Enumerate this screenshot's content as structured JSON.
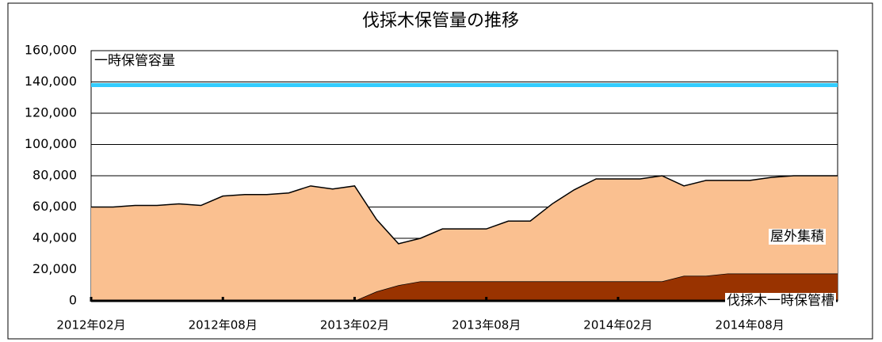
{
  "chart_data": {
    "type": "area",
    "title": "伐採木保管量の推移",
    "categories": [
      "2012年02月",
      null,
      null,
      null,
      null,
      null,
      "2012年08月",
      null,
      null,
      null,
      null,
      null,
      "2013年02月",
      null,
      null,
      null,
      null,
      null,
      "2013年08月",
      null,
      null,
      null,
      null,
      null,
      "2014年02月",
      null,
      null,
      null,
      null,
      null,
      "2014年08月",
      null,
      null,
      null,
      null
    ],
    "series": [
      {
        "name": "伐採木一時保管槽",
        "color": "#993300",
        "values": [
          0,
          0,
          0,
          0,
          0,
          0,
          0,
          0,
          0,
          0,
          0,
          0,
          0,
          6000,
          10000,
          12500,
          12500,
          12500,
          12500,
          12500,
          12500,
          12500,
          12500,
          12500,
          12500,
          12500,
          12500,
          16000,
          16000,
          17500,
          17500,
          17500,
          17500,
          17500,
          17500
        ]
      },
      {
        "name": "屋外集積",
        "color": "#fac090",
        "values": [
          60000,
          60000,
          61000,
          61000,
          62000,
          61000,
          67000,
          68000,
          68000,
          69000,
          73500,
          71500,
          73500,
          46000,
          26500,
          27500,
          33500,
          33500,
          33500,
          38500,
          38500,
          49500,
          58500,
          65500,
          65500,
          65500,
          67500,
          57500,
          61000,
          59500,
          59500,
          61500,
          62500,
          62500,
          62500
        ]
      },
      {
        "name": "一時保管容量",
        "color": "#33ccff",
        "type": "line",
        "values": [
          138000,
          138000,
          138000,
          138000,
          138000,
          138000,
          138000,
          138000,
          138000,
          138000,
          138000,
          138000,
          138000,
          138000,
          138000,
          138000,
          138000,
          138000,
          138000,
          138000,
          138000,
          138000,
          138000,
          138000,
          138000,
          138000,
          138000,
          138000,
          138000,
          138000,
          138000,
          138000,
          138000,
          138000,
          138000
        ]
      }
    ],
    "ylim": [
      0,
      160000
    ],
    "yticks": [
      {
        "value": 0,
        "label": "0"
      },
      {
        "value": 20000,
        "label": "20,000"
      },
      {
        "value": 40000,
        "label": "40,000"
      },
      {
        "value": 60000,
        "label": "60,000"
      },
      {
        "value": 80000,
        "label": "80,000"
      },
      {
        "value": 100000,
        "label": "100,000"
      },
      {
        "value": 120000,
        "label": "120,000"
      },
      {
        "value": 140000,
        "label": "140,000"
      },
      {
        "value": 160000,
        "label": "160,000"
      }
    ],
    "grid": true
  }
}
